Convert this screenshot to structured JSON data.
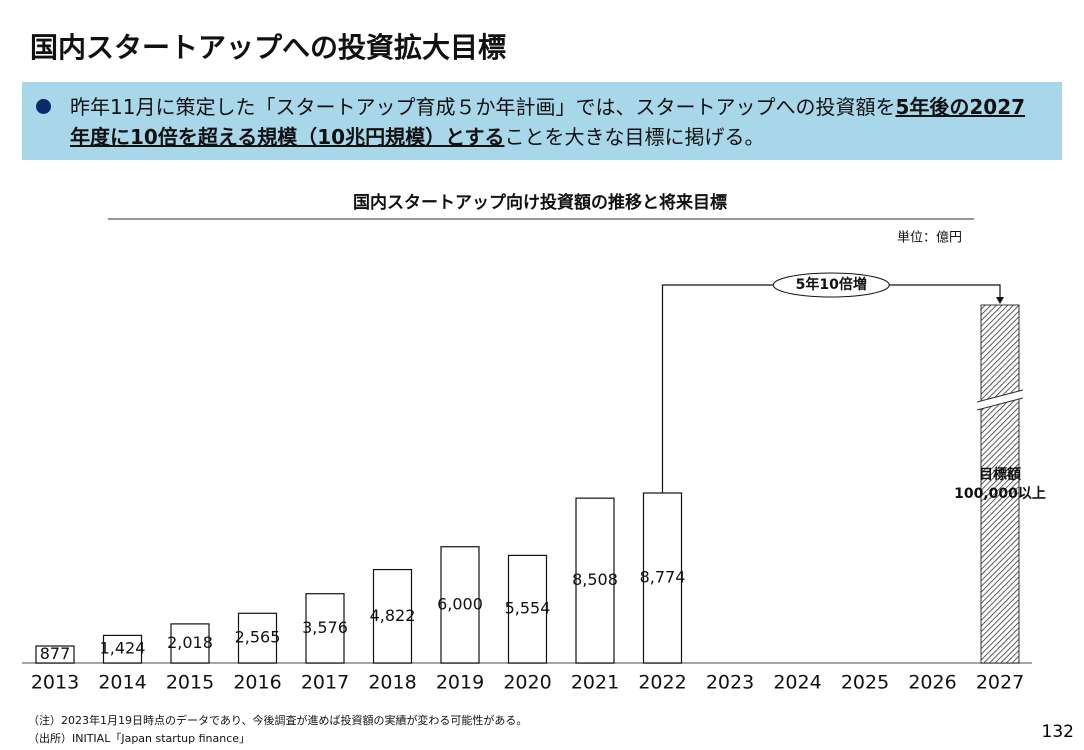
{
  "title": "国内スタートアップへの投資拡大目標",
  "bullet": {
    "text_before": "昨年11月に策定した「スタートアップ育成５か年計画」では、スタートアップへの投資額を",
    "emphasis": "5年後の2027年度に10倍を超える規模（10兆円規模）とする",
    "text_after": "ことを大きな目標に掲げる。"
  },
  "chart_data": {
    "type": "bar",
    "title": "国内スタートアップ向け投資額の推移と将来目標",
    "unit": "単位：億円",
    "categories": [
      "2013",
      "2014",
      "2015",
      "2016",
      "2017",
      "2018",
      "2019",
      "2020",
      "2021",
      "2022",
      "2023",
      "2024",
      "2025",
      "2026",
      "2027"
    ],
    "values": [
      877,
      1424,
      2018,
      2565,
      3576,
      4822,
      6000,
      5554,
      8508,
      8774,
      null,
      null,
      null,
      null,
      100000
    ],
    "value_labels": [
      "877",
      "1,424",
      "2,018",
      "2,565",
      "3,576",
      "4,822",
      "6,000",
      "5,554",
      "8,508",
      "8,774",
      null,
      null,
      null,
      null,
      "100,000以上"
    ],
    "annotations": [
      "目標額",
      "5年10倍増"
    ]
  },
  "notes": [
    "（注）2023年1月19日時点のデータであり、今後調査が進めば投資額の実績が変わる可能性がある。",
    "（出所）INITIAL「Japan startup finance」"
  ],
  "page_number": "132"
}
